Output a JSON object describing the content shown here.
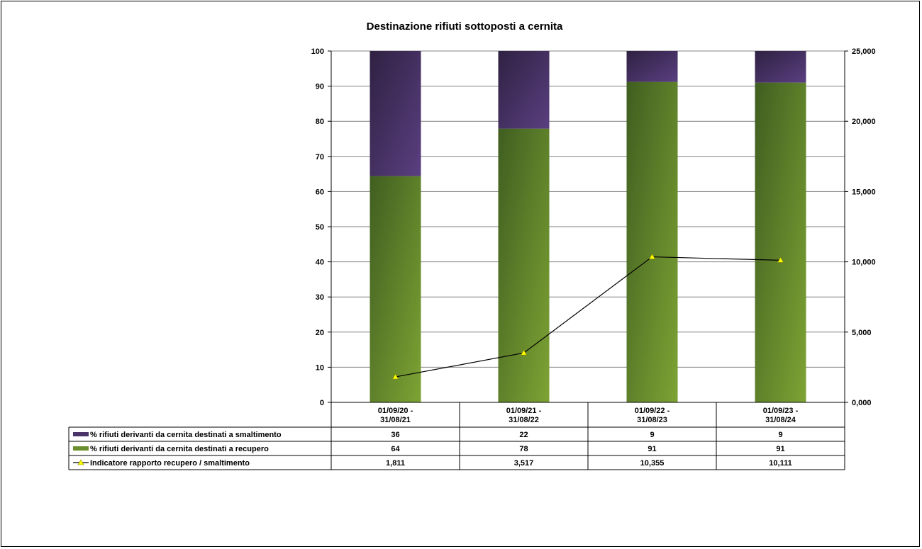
{
  "chart_data": {
    "type": "bar",
    "stacked": true,
    "title": "Destinazione rifiuti sottoposti a cernita",
    "categories": [
      [
        "01/09/20 -",
        "31/08/21"
      ],
      [
        "01/09/21 -",
        "31/08/22"
      ],
      [
        "01/09/22 -",
        "31/08/23"
      ],
      [
        "01/09/23 -",
        "31/08/24"
      ]
    ],
    "y_left": {
      "ylim": [
        0,
        100
      ],
      "ticks": [
        "0",
        "10",
        "20",
        "30",
        "40",
        "50",
        "60",
        "70",
        "80",
        "90",
        "100"
      ]
    },
    "y_right": {
      "ylim": [
        0,
        25
      ],
      "ticks": [
        "0,000",
        "5,000",
        "10,000",
        "15,000",
        "20,000",
        "25,000"
      ]
    },
    "grid": true,
    "legend_placement": "data-table-bottom",
    "series": [
      {
        "name": "% rifiuti derivanti da cernita destinati a recupero",
        "type": "bar",
        "axis": "left",
        "values": [
          64.4,
          77.9,
          91.2,
          91.0
        ],
        "labels": [
          "64",
          "78",
          "91",
          "91"
        ],
        "color": "#6b8f2e"
      },
      {
        "name": "% rifiuti derivanti da cernita destinati a smaltimento",
        "type": "bar",
        "axis": "left",
        "values": [
          35.6,
          22.1,
          8.8,
          9.0
        ],
        "labels": [
          "36",
          "22",
          "9",
          "9"
        ],
        "color": "#4a3468"
      },
      {
        "name": "Indicatore rapporto recupero / smaltimento",
        "type": "line",
        "axis": "right",
        "values": [
          1.811,
          3.517,
          10.355,
          10.111
        ],
        "labels": [
          "1,811",
          "3,517",
          "10,355",
          "10,111"
        ],
        "color": "#000000",
        "marker_color": "#ffff00"
      }
    ],
    "table_order": [
      1,
      0,
      2
    ]
  }
}
